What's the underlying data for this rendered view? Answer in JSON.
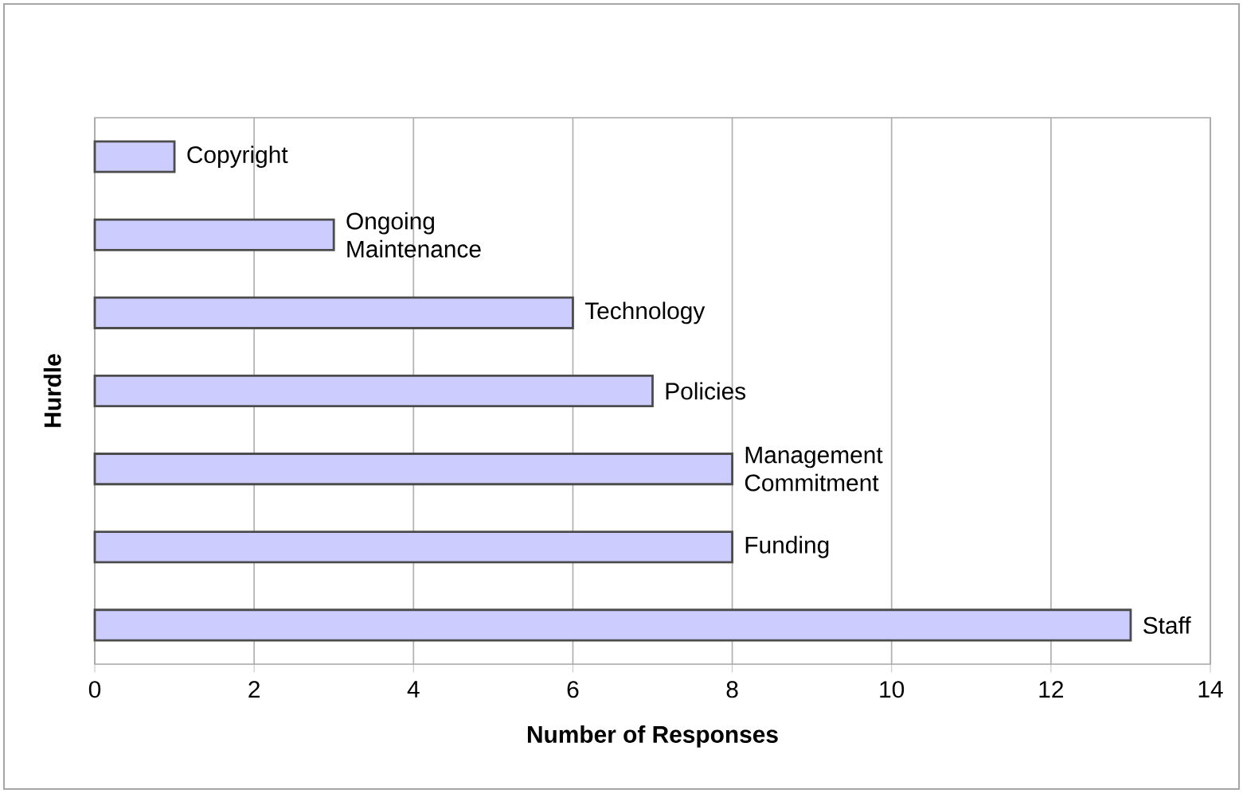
{
  "chart_data": {
    "type": "bar",
    "orientation": "horizontal",
    "xlabel": "Number of Responses",
    "ylabel": "Hurdle",
    "categories": [
      "Copyright",
      "Ongoing Maintenance",
      "Technology",
      "Policies",
      "Management Commitment",
      "Funding",
      "Staff"
    ],
    "values": [
      1,
      3,
      6,
      7,
      8,
      8,
      13
    ],
    "color": "#ccccff",
    "xlim": [
      0,
      14
    ],
    "xticks": [
      0,
      2,
      4,
      6,
      8,
      10,
      12,
      14
    ],
    "grid": "x",
    "tick_labels": "x"
  }
}
